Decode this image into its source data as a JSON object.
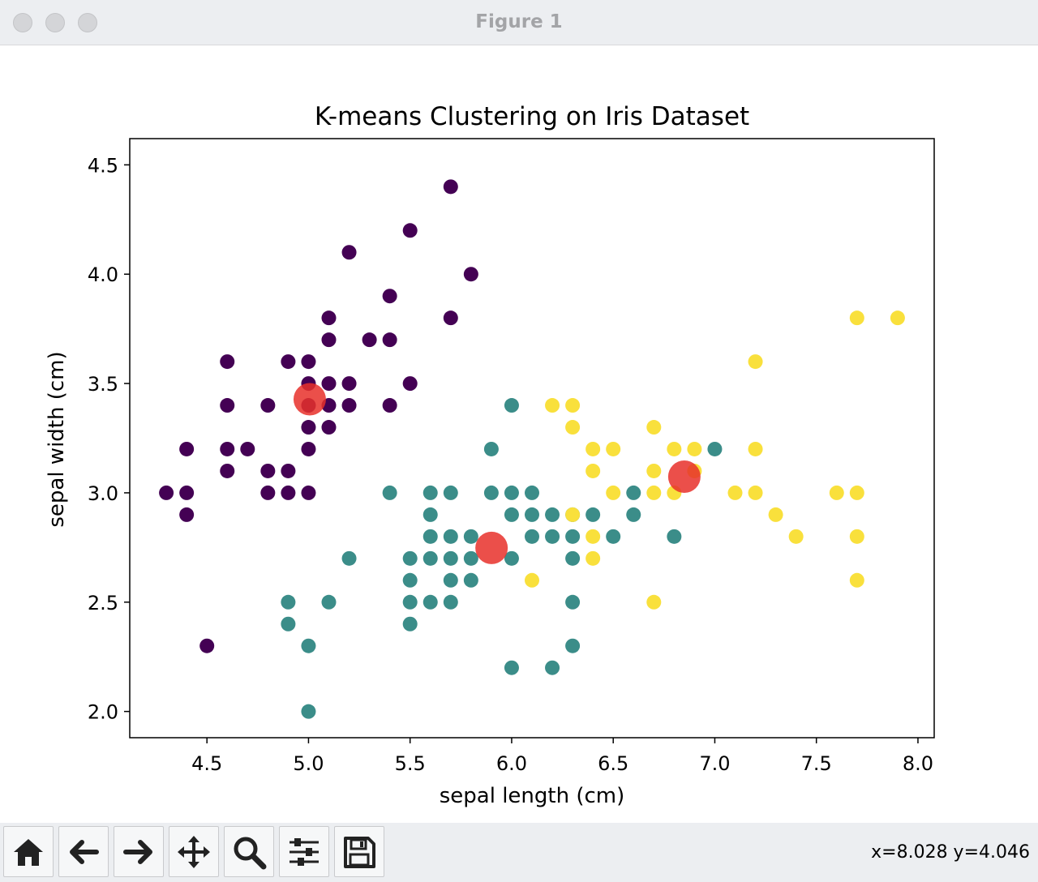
{
  "window": {
    "title": "Figure 1"
  },
  "toolbar": {
    "buttons": [
      {
        "name": "home",
        "icon": "home-icon"
      },
      {
        "name": "back",
        "icon": "arrow-left-icon"
      },
      {
        "name": "forward",
        "icon": "arrow-right-icon"
      },
      {
        "name": "pan",
        "icon": "move-icon"
      },
      {
        "name": "zoom",
        "icon": "magnifier-icon"
      },
      {
        "name": "configure",
        "icon": "sliders-icon"
      },
      {
        "name": "save",
        "icon": "floppy-disk-icon"
      }
    ],
    "coords": "x=8.028 y=4.046"
  },
  "chart_data": {
    "type": "scatter",
    "title": "K-means Clustering on Iris Dataset",
    "xlabel": "sepal length (cm)",
    "ylabel": "sepal width (cm)",
    "xlim": [
      4.12,
      8.08
    ],
    "ylim": [
      1.88,
      4.62
    ],
    "xticks": [
      "4.5",
      "5.0",
      "5.5",
      "6.0",
      "6.5",
      "7.0",
      "7.5",
      "8.0"
    ],
    "yticks": [
      "2.0",
      "2.5",
      "3.0",
      "3.5",
      "4.0",
      "4.5"
    ],
    "grid": false,
    "colors": {
      "cluster0": "#440154",
      "cluster1": "#3b8d89",
      "cluster2": "#f9e03c",
      "centroid": "#e8302a"
    },
    "series": [
      {
        "cluster": 0,
        "color": "#440154",
        "x": [
          5.7,
          5.5,
          5.2,
          5.8,
          5.4,
          5.7,
          5.1,
          5.1,
          5.3,
          5.4,
          4.6,
          4.9,
          5.0,
          5.5,
          5.0,
          5.1,
          5.2,
          4.6,
          4.8,
          5.0,
          5.1,
          5.2,
          5.4,
          4.4,
          4.6,
          4.7,
          5.0,
          5.1,
          4.6,
          4.8,
          4.9,
          4.3,
          4.4,
          4.8,
          4.9,
          5.0,
          4.4,
          4.5,
          5.0
        ],
        "y": [
          4.4,
          4.2,
          4.1,
          4.0,
          3.9,
          3.8,
          3.8,
          3.7,
          3.7,
          3.7,
          3.6,
          3.6,
          3.6,
          3.5,
          3.5,
          3.5,
          3.5,
          3.4,
          3.4,
          3.4,
          3.4,
          3.4,
          3.4,
          3.2,
          3.2,
          3.2,
          3.2,
          3.3,
          3.1,
          3.1,
          3.1,
          3.0,
          3.0,
          3.0,
          3.0,
          3.0,
          2.9,
          2.3,
          3.3
        ]
      },
      {
        "cluster": 1,
        "color": "#3b8d89",
        "x": [
          6.0,
          5.9,
          7.0,
          6.6,
          5.4,
          5.6,
          5.7,
          5.9,
          6.0,
          6.1,
          6.4,
          5.6,
          6.0,
          6.1,
          6.2,
          6.3,
          6.6,
          5.6,
          5.7,
          5.8,
          6.1,
          6.2,
          6.3,
          6.5,
          6.8,
          5.2,
          5.5,
          5.6,
          5.7,
          5.8,
          6.0,
          6.3,
          5.5,
          5.7,
          5.8,
          4.9,
          5.1,
          5.5,
          5.6,
          5.7,
          6.3,
          4.9,
          5.5,
          5.0,
          6.3,
          6.0,
          6.2,
          5.0
        ],
        "y": [
          3.4,
          3.2,
          3.2,
          3.0,
          3.0,
          3.0,
          3.0,
          3.0,
          3.0,
          3.0,
          2.9,
          2.9,
          2.9,
          2.9,
          2.9,
          2.9,
          2.9,
          2.8,
          2.8,
          2.8,
          2.8,
          2.8,
          2.8,
          2.8,
          2.8,
          2.7,
          2.7,
          2.7,
          2.7,
          2.7,
          2.7,
          2.7,
          2.6,
          2.6,
          2.6,
          2.5,
          2.5,
          2.5,
          2.5,
          2.5,
          2.5,
          2.4,
          2.4,
          2.3,
          2.3,
          2.2,
          2.2,
          2.0
        ]
      },
      {
        "cluster": 2,
        "color": "#f9e03c",
        "x": [
          7.7,
          7.9,
          7.2,
          6.2,
          6.3,
          6.3,
          6.7,
          6.4,
          6.5,
          6.8,
          6.9,
          7.2,
          6.4,
          6.7,
          6.5,
          6.7,
          6.8,
          7.1,
          7.2,
          7.6,
          7.7,
          6.3,
          7.3,
          6.4,
          7.4,
          7.7,
          6.4,
          6.1,
          7.7,
          6.7,
          6.9
        ],
        "y": [
          3.8,
          3.8,
          3.6,
          3.4,
          3.4,
          3.3,
          3.3,
          3.2,
          3.2,
          3.2,
          3.2,
          3.2,
          3.1,
          3.1,
          3.0,
          3.0,
          3.0,
          3.0,
          3.0,
          3.0,
          3.0,
          2.9,
          2.9,
          2.8,
          2.8,
          2.8,
          2.7,
          2.6,
          2.6,
          2.5,
          3.1
        ]
      },
      {
        "name": "",
        "cluster": "centroids",
        "color": "#e8302a",
        "x": [
          5.006,
          5.901,
          6.85
        ],
        "y": [
          3.428,
          2.748,
          3.074
        ]
      }
    ]
  }
}
